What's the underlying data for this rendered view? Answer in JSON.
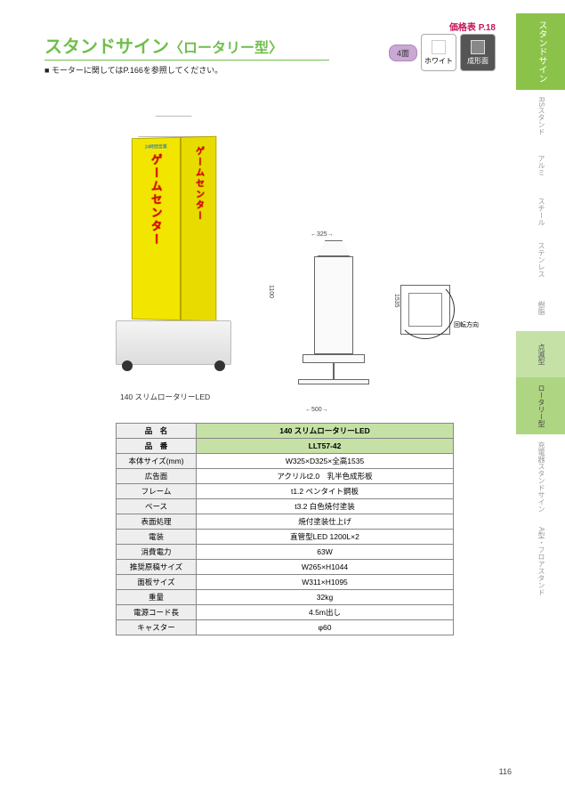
{
  "header": {
    "price_ref": "価格表 P.18",
    "title_main": "スタンドサイン",
    "title_sub": "〈ロータリー型〉",
    "subtitle": "■ モーターに関してはP.166を参照してください。"
  },
  "badges": {
    "four_face": "4面",
    "white": "ホワイト",
    "molded": "成形面"
  },
  "side_tabs": [
    {
      "label": "スタンドサイン",
      "cls": "active-main"
    },
    {
      "label": "RSスタンド",
      "cls": ""
    },
    {
      "label": "アルミ",
      "cls": ""
    },
    {
      "label": "スチール",
      "cls": ""
    },
    {
      "label": "ステンレス",
      "cls": ""
    },
    {
      "label": "樹脂",
      "cls": ""
    },
    {
      "label": "点滅型",
      "cls": "active-sub"
    },
    {
      "label": "ロータリー型",
      "cls": "current"
    },
    {
      "label": "充電器スタンドサイン",
      "cls": ""
    },
    {
      "label": "A型・フロアスタンド",
      "cls": ""
    }
  ],
  "product": {
    "hours": "24時間営業",
    "game_text": "ゲームセンター",
    "caption": "140 スリムロータリーLED"
  },
  "dimensions": {
    "width_top": "325",
    "height_upper": "1100",
    "height_total": "1535",
    "width_base": "500",
    "rotation_label": "回転方向"
  },
  "spec": {
    "headers": {
      "name": "品　名",
      "number": "品　番"
    },
    "product_name": "140 スリムロータリーLED",
    "product_number": "LLT57-42",
    "rows": [
      {
        "label": "本体サイズ(mm)",
        "value": "W325×D325×全高1535"
      },
      {
        "label": "広告面",
        "value": "アクリルt2.0　乳半色成形板"
      },
      {
        "label": "フレーム",
        "value": "t1.2 ペンタイト鋼板"
      },
      {
        "label": "ベース",
        "value": "t3.2 白色焼付塗装"
      },
      {
        "label": "表面処理",
        "value": "焼付塗装仕上げ"
      },
      {
        "label": "電装",
        "value": "直管型LED 1200L×2"
      },
      {
        "label": "消費電力",
        "value": "63W"
      },
      {
        "label": "推奨原稿サイズ",
        "value": "W265×H1044"
      },
      {
        "label": "面板サイズ",
        "value": "W311×H1095"
      },
      {
        "label": "重量",
        "value": "32kg"
      },
      {
        "label": "電源コード長",
        "value": "4.5m出し"
      },
      {
        "label": "キャスター",
        "value": "φ60"
      }
    ]
  },
  "page_number": "116",
  "colors": {
    "brand_green": "#6fbf4b",
    "tab_green": "#8bc34a",
    "tab_light": "#c5e1a5",
    "price_pink": "#c2185b",
    "sign_yellow": "#f2e600",
    "sign_red_text": "#d00000"
  }
}
